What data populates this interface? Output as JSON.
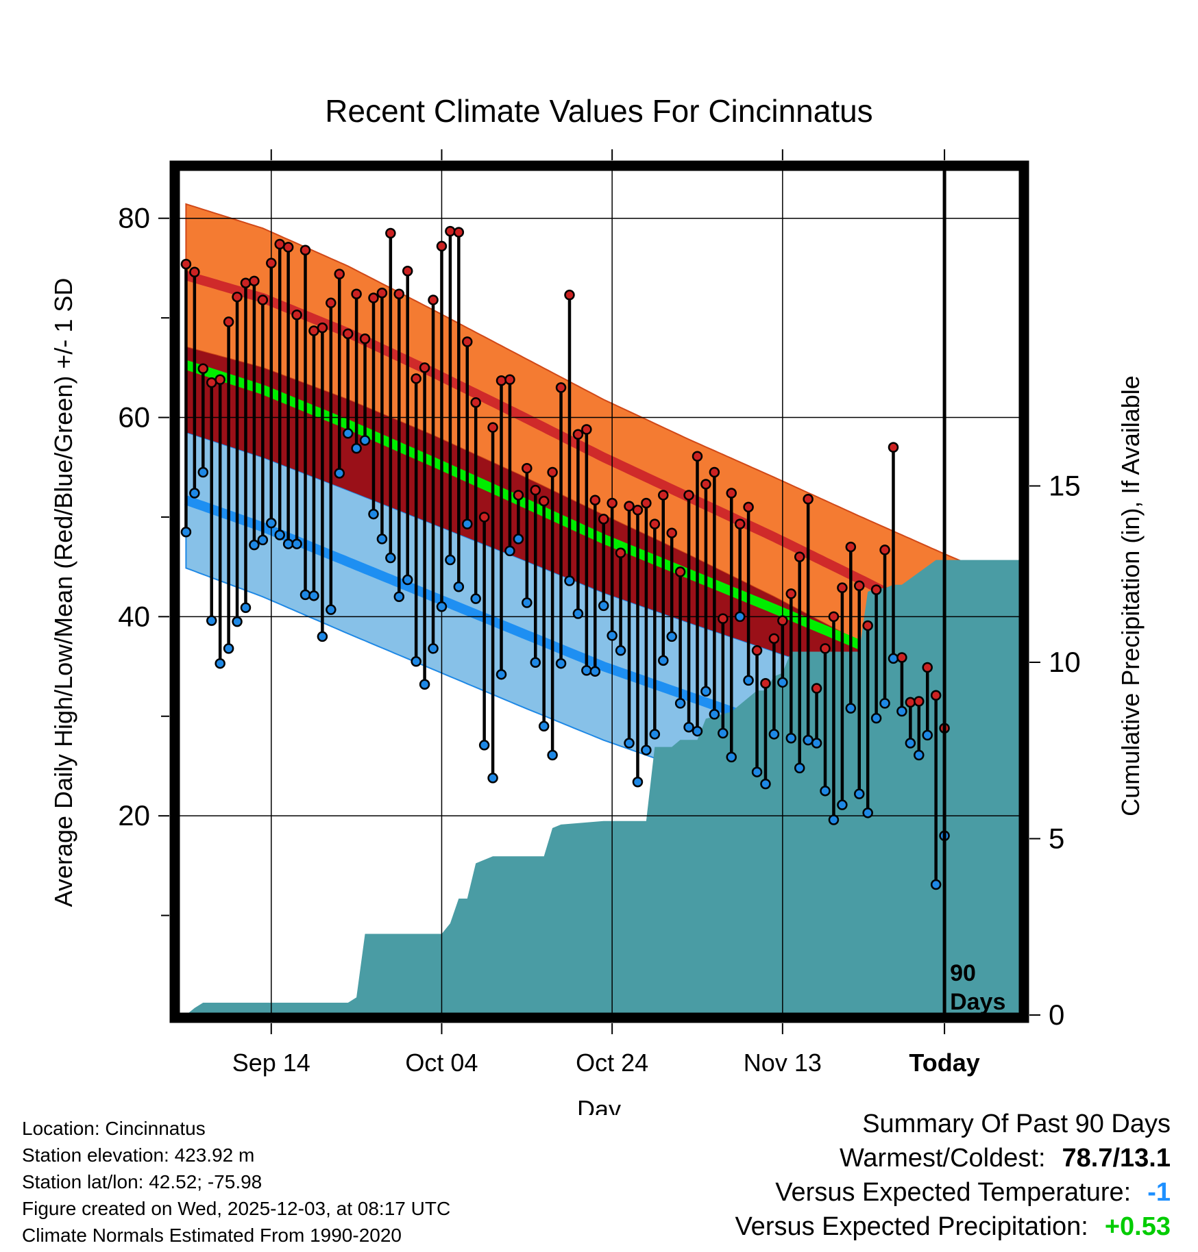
{
  "chart_data": {
    "type": "line",
    "title": "Recent Climate Values For Cincinnatus",
    "xlabel": "Day",
    "ylabel": "Average Daily High/Low/Mean (Red/Blue/Green) +/- 1 SD",
    "y2label": "Cumulative Precipitation (in), If Available",
    "ylim": [
      0,
      85
    ],
    "y2lim": [
      0,
      24
    ],
    "xlim": [
      -90,
      9
    ],
    "x_ticks": [
      {
        "day": -79,
        "label": "Sep 14"
      },
      {
        "day": -59,
        "label": "Oct 04"
      },
      {
        "day": -39,
        "label": "Oct 24"
      },
      {
        "day": -19,
        "label": "Nov 13"
      },
      {
        "day": 0,
        "label": "Today"
      }
    ],
    "y_ticks": [
      20,
      40,
      60,
      80
    ],
    "y2_ticks": [
      0,
      5,
      10,
      15
    ],
    "marker_label": "90 Days",
    "normals": {
      "days": [
        -90,
        -80,
        -70,
        -60,
        -50,
        -40,
        -30,
        -20,
        -10,
        0,
        9
      ],
      "high_mean": [
        74.5,
        72.0,
        68.5,
        64.5,
        60.3,
        56.0,
        52.0,
        48.0,
        43.8,
        39.5,
        36.0
      ],
      "high_sd": [
        7.2,
        7.0,
        6.7,
        6.3,
        6.0,
        5.8,
        5.8,
        6.0,
        6.3,
        6.8,
        7.0
      ],
      "low_mean": [
        52.0,
        49.0,
        45.5,
        42.0,
        38.5,
        35.0,
        32.0,
        29.0,
        26.0,
        23.0,
        21.2
      ],
      "low_sd": [
        6.8,
        7.0,
        7.2,
        7.3,
        7.4,
        7.4,
        7.4,
        7.5,
        7.6,
        7.8,
        8.0
      ]
    },
    "series": [
      {
        "name": "High",
        "values": [
          75.4,
          74.6,
          64.9,
          63.5,
          63.8,
          69.6,
          72.1,
          73.5,
          73.7,
          71.8,
          75.5,
          77.4,
          77.1,
          70.3,
          76.8,
          68.7,
          69.0,
          71.5,
          74.4,
          68.4,
          72.4,
          67.9,
          72.0,
          72.5,
          78.5,
          72.4,
          74.7,
          63.9,
          65.0,
          71.8,
          77.2,
          78.7,
          78.6,
          67.6,
          61.5,
          50.0,
          59.0,
          63.7,
          63.8,
          52.2,
          54.9,
          52.7,
          51.6,
          54.5,
          63.0,
          72.3,
          58.3,
          58.8,
          51.7,
          49.8,
          51.4,
          46.4,
          51.1,
          50.7,
          51.4,
          49.3,
          52.2,
          48.4,
          44.5,
          52.2,
          56.1,
          53.3,
          54.5,
          39.8,
          52.4,
          49.3,
          51.0,
          36.6,
          33.3,
          37.8,
          39.6,
          42.3,
          46.0,
          51.8,
          32.8,
          36.8,
          40.0,
          42.9,
          47.0,
          43.1,
          39.1,
          42.7,
          46.7,
          57.0,
          35.9,
          31.4,
          31.5,
          34.9,
          32.1,
          28.8
        ]
      },
      {
        "name": "Low",
        "values": [
          48.5,
          52.4,
          54.5,
          39.6,
          35.3,
          36.8,
          39.5,
          40.9,
          47.2,
          47.7,
          49.4,
          48.2,
          47.3,
          47.3,
          42.2,
          42.1,
          38.0,
          40.7,
          54.4,
          58.4,
          56.9,
          57.7,
          50.3,
          47.8,
          45.9,
          42.0,
          43.7,
          35.5,
          33.2,
          36.8,
          41.0,
          45.7,
          43.0,
          49.3,
          41.8,
          27.1,
          23.8,
          34.2,
          46.6,
          47.8,
          41.4,
          35.4,
          29.0,
          26.1,
          35.3,
          43.6,
          40.3,
          34.6,
          34.5,
          41.1,
          38.1,
          36.6,
          27.3,
          23.4,
          26.6,
          28.2,
          35.6,
          38.0,
          31.3,
          28.9,
          28.5,
          32.5,
          30.2,
          28.3,
          25.9,
          40.0,
          33.6,
          24.4,
          23.2,
          28.2,
          33.4,
          27.8,
          24.8,
          27.6,
          27.3,
          22.5,
          19.6,
          21.1,
          30.8,
          22.2,
          20.3,
          29.8,
          31.3,
          35.8,
          30.5,
          27.3,
          26.1,
          28.1,
          13.1,
          18.0
        ]
      }
    ],
    "precip_cumulative": {
      "days": [
        -89,
        -88,
        -87,
        -70,
        -69,
        -68,
        -59,
        -58,
        -57,
        -56,
        -55,
        -53,
        -52,
        -51,
        -47,
        -46,
        -45,
        -40,
        -39,
        -35,
        -34,
        -32,
        -31,
        -29,
        -28,
        -25,
        -24,
        -22,
        -21,
        -20,
        -19,
        -18,
        -17,
        -15,
        -14,
        -10,
        -9,
        -8,
        -7,
        -6,
        -5,
        -1,
        9
      ],
      "values": [
        0.0,
        0.2,
        0.35,
        0.35,
        0.5,
        2.3,
        2.3,
        2.6,
        3.3,
        3.3,
        4.3,
        4.5,
        4.5,
        4.5,
        4.5,
        5.3,
        5.4,
        5.5,
        5.5,
        5.5,
        7.6,
        7.6,
        7.8,
        7.8,
        8.4,
        8.6,
        8.8,
        9.2,
        9.2,
        9.6,
        9.7,
        10.3,
        10.3,
        10.3,
        10.3,
        10.3,
        12.0,
        12.1,
        12.1,
        12.2,
        12.2,
        12.9,
        12.9
      ]
    }
  },
  "colors": {
    "high_band": "#f47b32",
    "high_mean": "#cf2a2a",
    "low_band": "#87c1e8",
    "low_mean": "#1e8ff2",
    "mean_line": "#00ee00",
    "overlap": "#9a1018",
    "precip": "#4a9ca4",
    "high_dot": "#cc2222",
    "low_dot": "#1e88e5",
    "positive": "#00cc00",
    "negative": "#1e90ff"
  },
  "info": {
    "location": "Location: Cincinnatus",
    "elevation": "Station elevation: 423.92 m",
    "latlon": "Station lat/lon: 42.52; -75.98",
    "created": "Figure created on Wed, 2025-12-03, at 08:17 UTC",
    "normals": "Climate Normals Estimated From 1990-2020"
  },
  "summary": {
    "title": "Summary Of Past 90 Days",
    "warmest_label": "Warmest/Coldest:",
    "warmest_value": "78.7/13.1",
    "temp_label": "Versus Expected Temperature:",
    "temp_value": "-1",
    "precip_label": "Versus Expected Precipitation:",
    "precip_value": "+0.53"
  }
}
